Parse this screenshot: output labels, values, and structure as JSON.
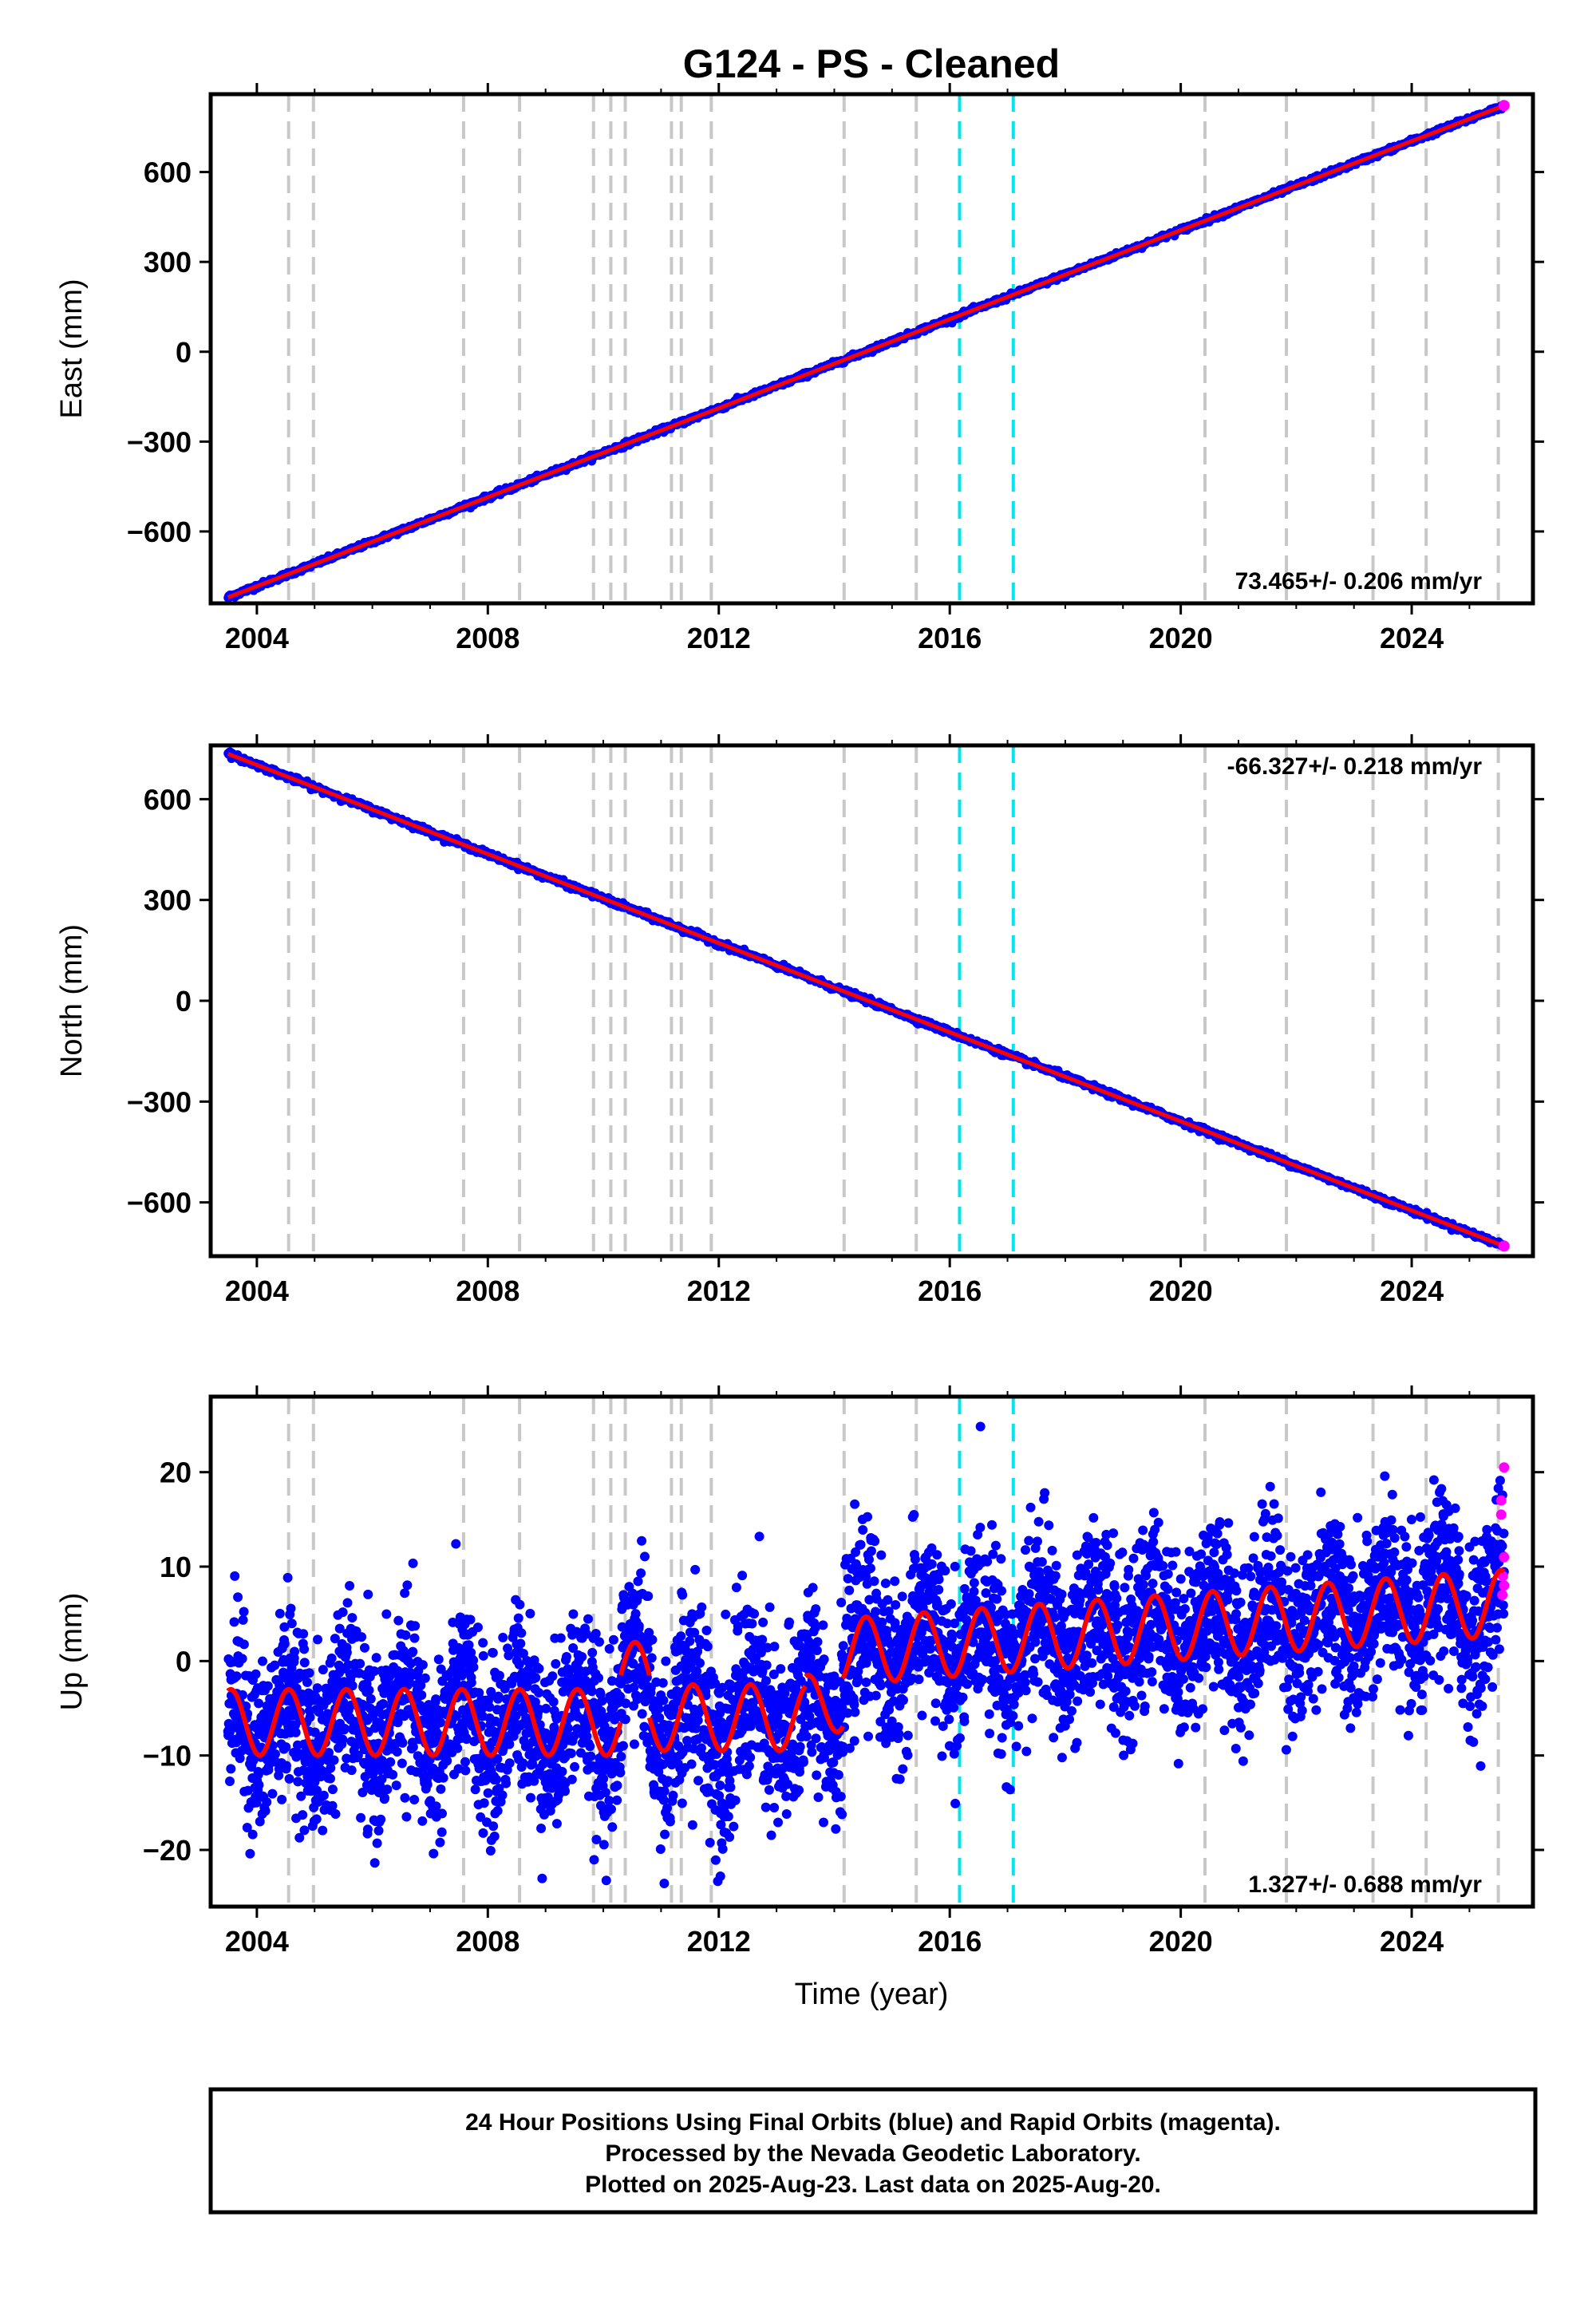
{
  "title": "G124  - PS - Cleaned",
  "xlabel": "Time (year)",
  "colors": {
    "final_orbits": "#0000ff",
    "rapid_orbits": "#ff00ff",
    "model": "#ff0000",
    "event_generic": "#c8c8c8",
    "event_equipment": "#00e5ee"
  },
  "footer": {
    "line1": "24 Hour Positions Using Final Orbits (blue) and Rapid Orbits (magenta).",
    "line2": "Processed by the Nevada Geodetic Laboratory.",
    "line3": "Plotted on 2025-Aug-23. Last data on 2025-Aug-20."
  },
  "chart_data": [
    {
      "type": "scatter",
      "panel": "east",
      "ylabel": "East (mm)",
      "xlim": [
        2003.2,
        2026.1
      ],
      "ylim": [
        -840,
        860
      ],
      "xticks": [
        "2004",
        "2008",
        "2012",
        "2016",
        "2020",
        "2024"
      ],
      "yticks": [
        "600",
        "300",
        "0",
        "−300",
        "−600"
      ],
      "yticks_values": [
        600,
        300,
        0,
        -300,
        -600
      ],
      "rate_label": "73.465+/- 0.206 mm/yr",
      "model": {
        "start": [
          2003.5,
          -820
        ],
        "end": [
          2025.6,
          822
        ],
        "rate_mm_per_yr": 73.465
      },
      "scatter_mm": 4,
      "grid": false
    },
    {
      "type": "scatter",
      "panel": "north",
      "ylabel": "North (mm)",
      "xlim": [
        2003.2,
        2026.1
      ],
      "ylim": [
        -760,
        760
      ],
      "xticks": [
        "2004",
        "2008",
        "2012",
        "2016",
        "2020",
        "2024"
      ],
      "yticks": [
        "600",
        "300",
        "0",
        "−300",
        "−600"
      ],
      "yticks_values": [
        600,
        300,
        0,
        -300,
        -600
      ],
      "rate_label": "-66.327+/- 0.218 mm/yr",
      "model": {
        "start": [
          2003.5,
          735
        ],
        "end": [
          2025.6,
          -730
        ],
        "rate_mm_per_yr": -66.327
      },
      "scatter_mm": 4,
      "grid": false
    },
    {
      "type": "scatter",
      "panel": "up",
      "ylabel": "Up (mm)",
      "xlim": [
        2003.2,
        2026.1
      ],
      "ylim": [
        -26,
        28
      ],
      "xticks": [
        "2004",
        "2008",
        "2012",
        "2016",
        "2020",
        "2024"
      ],
      "yticks": [
        "20",
        "10",
        "0",
        "−10",
        "−20"
      ],
      "yticks_values": [
        20,
        10,
        0,
        -10,
        -20
      ],
      "rate_label": "1.327+/- 0.688 mm/yr",
      "model_segments": [
        {
          "from": 2003.5,
          "to": 2010.3,
          "base": -6.5,
          "trend": 0.0,
          "amp": 3.5,
          "phase_year": 0.55
        },
        {
          "from": 2010.3,
          "to": 2010.8,
          "base": -1.5,
          "trend": 0.0,
          "amp": 3.5,
          "phase_year": 0.55
        },
        {
          "from": 2010.8,
          "to": 2013.5,
          "base": -6.0,
          "trend": 0.0,
          "amp": 3.5,
          "phase_year": 0.55
        },
        {
          "from": 2013.5,
          "to": 2014.15,
          "base": -4.5,
          "trend": 0.0,
          "amp": 3.0,
          "phase_year": 0.55
        },
        {
          "from": 2014.15,
          "to": 2025.6,
          "base": 1.0,
          "trend": 0.45,
          "amp": 3.5,
          "phase_year": 0.55
        }
      ],
      "scatter_sd_mm": 4.5,
      "rapid_orbit_points": [
        [
          2025.55,
          17
        ],
        [
          2025.55,
          15.5
        ],
        [
          2025.6,
          11
        ],
        [
          2025.58,
          9
        ],
        [
          2025.6,
          8
        ],
        [
          2025.57,
          7
        ],
        [
          2025.6,
          20.5
        ]
      ],
      "grid": false
    }
  ],
  "events": {
    "generic_years": [
      2004.55,
      2004.98,
      2007.58,
      2008.55,
      2009.83,
      2010.13,
      2010.38,
      2011.18,
      2011.35,
      2011.87,
      2014.17,
      2015.42,
      2020.42,
      2021.83,
      2023.33,
      2024.25,
      2025.5
    ],
    "equipment_years": [
      2016.17,
      2017.1
    ]
  }
}
